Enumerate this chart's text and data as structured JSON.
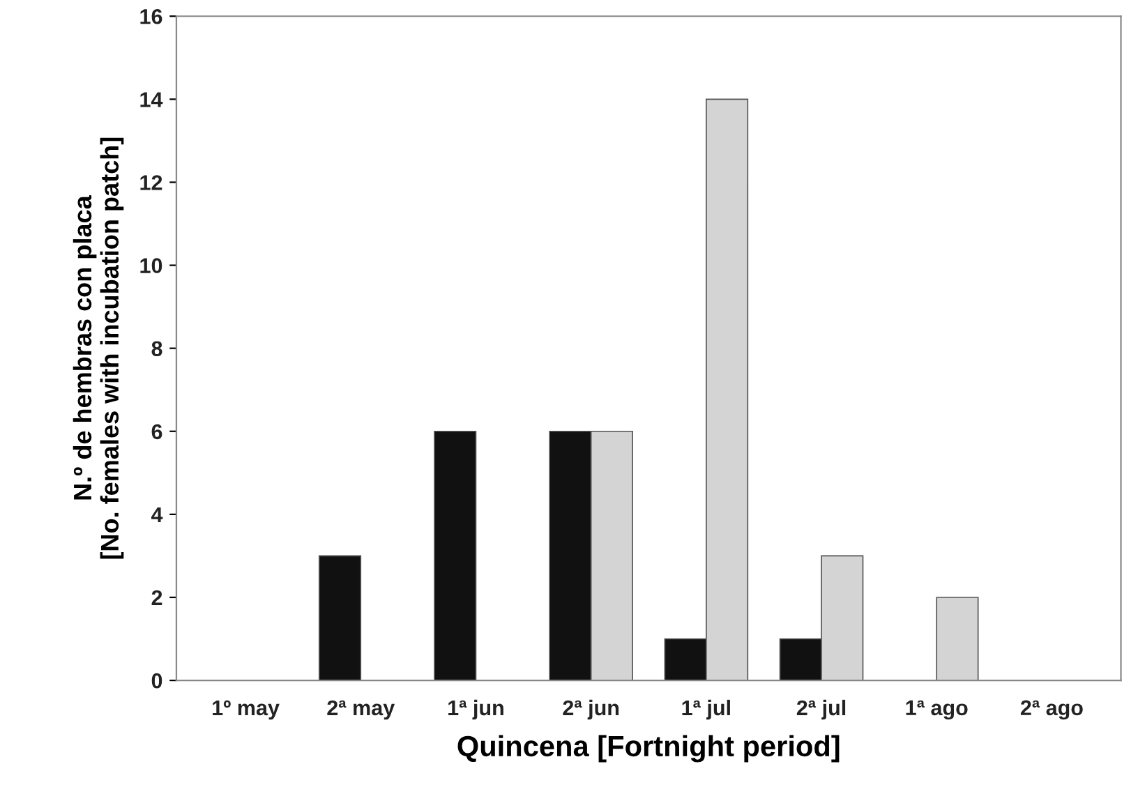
{
  "chart_data": {
    "type": "bar",
    "xlabel": "Quincena [Fortnight period]",
    "ylabel": "N.º de hembras con placa\n[No. females with incubation patch]",
    "categories": [
      "1º may",
      "2ª may",
      "1ª jun",
      "2ª jun",
      "1ª jul",
      "2ª jul",
      "1ª ago",
      "2ª ago"
    ],
    "series": [
      {
        "color": "#111111",
        "values": [
          0,
          3,
          6,
          6,
          1,
          1,
          0,
          0
        ]
      },
      {
        "color": "#d4d4d4",
        "values": [
          0,
          0,
          0,
          6,
          14,
          3,
          2,
          0
        ]
      }
    ],
    "ylim": [
      0,
      16
    ],
    "yticks": [
      0,
      2,
      4,
      6,
      8,
      10,
      12,
      14,
      16
    ],
    "grid": false,
    "legend": false
  }
}
